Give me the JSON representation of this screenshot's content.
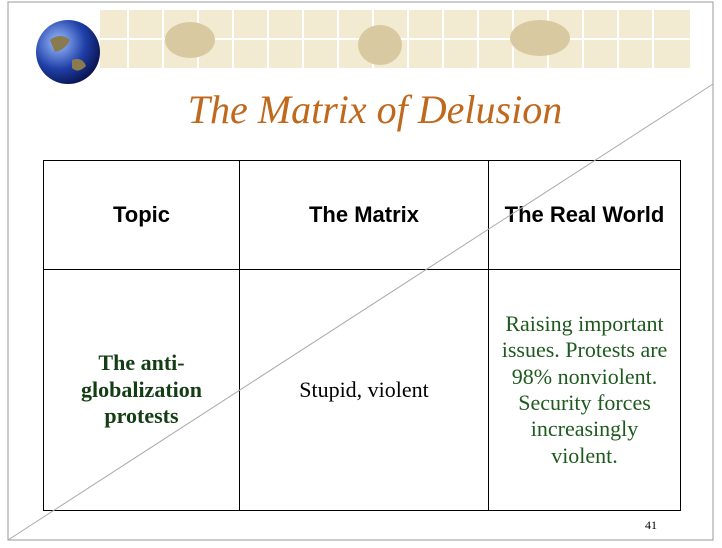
{
  "header": {
    "title": "The Matrix of Delusion"
  },
  "table": {
    "columns": [
      "Topic",
      "The Matrix",
      "The Real World"
    ],
    "rows": [
      [
        "The anti-globalization protests",
        "Stupid, violent",
        "Raising important issues. Protests are 98% nonviolent. Security forces increasingly violent."
      ]
    ]
  },
  "footer": {
    "page_number": "41"
  }
}
